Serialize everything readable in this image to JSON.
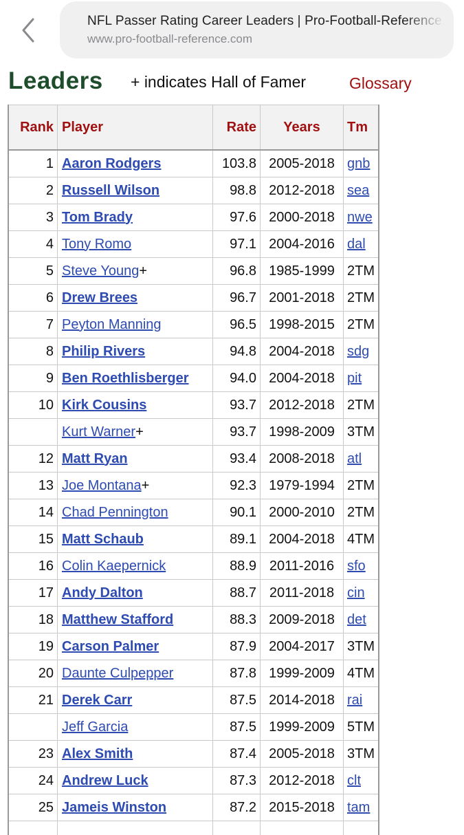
{
  "browser": {
    "tab_title": "NFL Passer Rating Career Leaders | Pro-Football-Reference.com",
    "url": "www.pro-football-reference.com",
    "back_icon": "chevron-left-icon"
  },
  "page": {
    "heading": "Leaders",
    "hof_note": "+ indicates Hall of Famer",
    "glossary": "Glossary"
  },
  "table": {
    "headers": [
      "Rank",
      "Player",
      "Rate",
      "Years",
      "Tm"
    ],
    "rows": [
      {
        "rank": "1",
        "player": "Aaron Rodgers",
        "hof": "",
        "active": true,
        "rate": "103.8",
        "years": "2005-2018",
        "tm": "gnb",
        "tm_link": true
      },
      {
        "rank": "2",
        "player": "Russell Wilson",
        "hof": "",
        "active": true,
        "rate": "98.8",
        "years": "2012-2018",
        "tm": "sea",
        "tm_link": true
      },
      {
        "rank": "3",
        "player": "Tom Brady",
        "hof": "",
        "active": true,
        "rate": "97.6",
        "years": "2000-2018",
        "tm": "nwe",
        "tm_link": true
      },
      {
        "rank": "4",
        "player": "Tony Romo",
        "hof": "",
        "active": false,
        "rate": "97.1",
        "years": "2004-2016",
        "tm": "dal",
        "tm_link": true
      },
      {
        "rank": "5",
        "player": "Steve Young",
        "hof": "+",
        "active": false,
        "rate": "96.8",
        "years": "1985-1999",
        "tm": "2TM",
        "tm_link": false
      },
      {
        "rank": "6",
        "player": "Drew Brees",
        "hof": "",
        "active": true,
        "rate": "96.7",
        "years": "2001-2018",
        "tm": "2TM",
        "tm_link": false
      },
      {
        "rank": "7",
        "player": "Peyton Manning",
        "hof": "",
        "active": false,
        "rate": "96.5",
        "years": "1998-2015",
        "tm": "2TM",
        "tm_link": false
      },
      {
        "rank": "8",
        "player": "Philip Rivers",
        "hof": "",
        "active": true,
        "rate": "94.8",
        "years": "2004-2018",
        "tm": "sdg",
        "tm_link": true
      },
      {
        "rank": "9",
        "player": "Ben Roethlisberger",
        "hof": "",
        "active": true,
        "rate": "94.0",
        "years": "2004-2018",
        "tm": "pit",
        "tm_link": true
      },
      {
        "rank": "10",
        "player": "Kirk Cousins",
        "hof": "",
        "active": true,
        "rate": "93.7",
        "years": "2012-2018",
        "tm": "2TM",
        "tm_link": false
      },
      {
        "rank": "",
        "player": "Kurt Warner",
        "hof": "+",
        "active": false,
        "rate": "93.7",
        "years": "1998-2009",
        "tm": "3TM",
        "tm_link": false
      },
      {
        "rank": "12",
        "player": "Matt Ryan",
        "hof": "",
        "active": true,
        "rate": "93.4",
        "years": "2008-2018",
        "tm": "atl",
        "tm_link": true
      },
      {
        "rank": "13",
        "player": "Joe Montana",
        "hof": "+",
        "active": false,
        "rate": "92.3",
        "years": "1979-1994",
        "tm": "2TM",
        "tm_link": false
      },
      {
        "rank": "14",
        "player": "Chad Pennington",
        "hof": "",
        "active": false,
        "rate": "90.1",
        "years": "2000-2010",
        "tm": "2TM",
        "tm_link": false
      },
      {
        "rank": "15",
        "player": "Matt Schaub",
        "hof": "",
        "active": true,
        "rate": "89.1",
        "years": "2004-2018",
        "tm": "4TM",
        "tm_link": false
      },
      {
        "rank": "16",
        "player": "Colin Kaepernick",
        "hof": "",
        "active": false,
        "rate": "88.9",
        "years": "2011-2016",
        "tm": "sfo",
        "tm_link": true
      },
      {
        "rank": "17",
        "player": "Andy Dalton",
        "hof": "",
        "active": true,
        "rate": "88.7",
        "years": "2011-2018",
        "tm": "cin",
        "tm_link": true
      },
      {
        "rank": "18",
        "player": "Matthew Stafford",
        "hof": "",
        "active": true,
        "rate": "88.3",
        "years": "2009-2018",
        "tm": "det",
        "tm_link": true
      },
      {
        "rank": "19",
        "player": "Carson Palmer",
        "hof": "",
        "active": true,
        "rate": "87.9",
        "years": "2004-2017",
        "tm": "3TM",
        "tm_link": false
      },
      {
        "rank": "20",
        "player": "Daunte Culpepper",
        "hof": "",
        "active": false,
        "rate": "87.8",
        "years": "1999-2009",
        "tm": "4TM",
        "tm_link": false
      },
      {
        "rank": "21",
        "player": "Derek Carr",
        "hof": "",
        "active": true,
        "rate": "87.5",
        "years": "2014-2018",
        "tm": "rai",
        "tm_link": true
      },
      {
        "rank": "",
        "player": "Jeff Garcia",
        "hof": "",
        "active": false,
        "rate": "87.5",
        "years": "1999-2009",
        "tm": "5TM",
        "tm_link": false
      },
      {
        "rank": "23",
        "player": "Alex Smith",
        "hof": "",
        "active": true,
        "rate": "87.4",
        "years": "2005-2018",
        "tm": "3TM",
        "tm_link": false
      },
      {
        "rank": "24",
        "player": "Andrew Luck",
        "hof": "",
        "active": true,
        "rate": "87.3",
        "years": "2012-2018",
        "tm": "clt",
        "tm_link": true
      },
      {
        "rank": "25",
        "player": "Jameis Winston",
        "hof": "",
        "active": true,
        "rate": "87.2",
        "years": "2015-2018",
        "tm": "tam",
        "tm_link": true
      }
    ]
  }
}
